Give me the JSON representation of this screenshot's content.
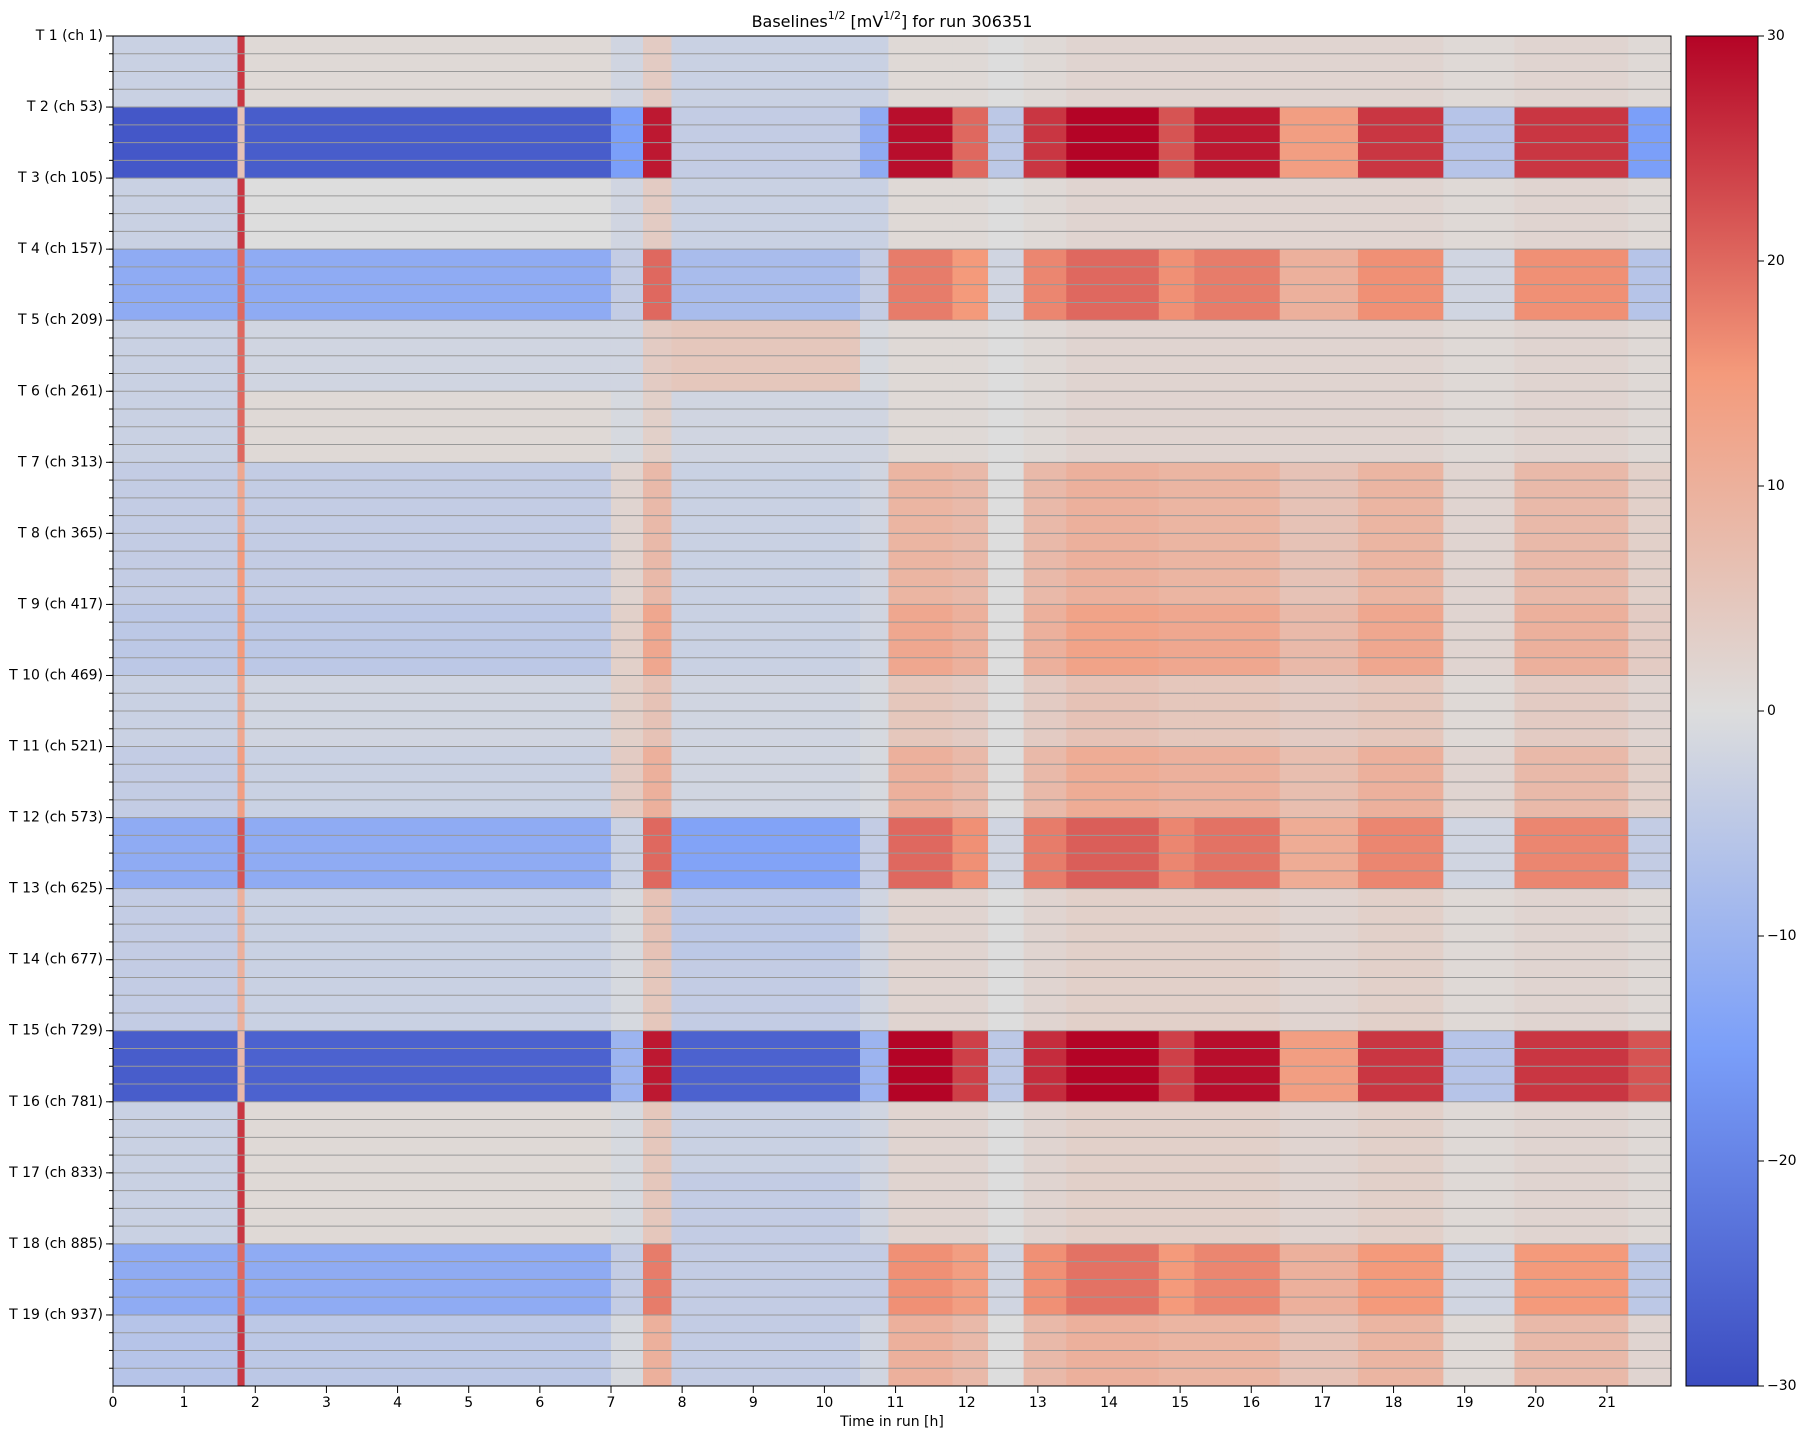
{
  "chart_data": {
    "type": "heatmap",
    "title_parts": [
      {
        "text": "Baselines"
      },
      {
        "text": "1/2",
        "sup": true
      },
      {
        "text": " [mV"
      },
      {
        "text": "1/2",
        "sup": true
      },
      {
        "text": "] for run 306351"
      }
    ],
    "xlabel": "Time in run [h]",
    "xlim": [
      0,
      21.9
    ],
    "xticks": [
      0,
      1,
      2,
      3,
      4,
      5,
      6,
      7,
      8,
      9,
      10,
      11,
      12,
      13,
      14,
      15,
      16,
      17,
      18,
      19,
      20,
      21
    ],
    "ylim": [
      1,
      989
    ],
    "yticks": [
      {
        "value": 1,
        "label": "T 1 (ch 1)"
      },
      {
        "value": 53,
        "label": "T 2 (ch 53)"
      },
      {
        "value": 105,
        "label": "T 3 (ch 105)"
      },
      {
        "value": 157,
        "label": "T 4 (ch 157)"
      },
      {
        "value": 209,
        "label": "T 5 (ch 209)"
      },
      {
        "value": 261,
        "label": "T 6 (ch 261)"
      },
      {
        "value": 313,
        "label": "T 7 (ch 313)"
      },
      {
        "value": 365,
        "label": "T 8 (ch 365)"
      },
      {
        "value": 417,
        "label": "T 9 (ch 417)"
      },
      {
        "value": 469,
        "label": "T 10 (ch 469)"
      },
      {
        "value": 521,
        "label": "T 11 (ch 521)"
      },
      {
        "value": 573,
        "label": "T 12 (ch 573)"
      },
      {
        "value": 625,
        "label": "T 13 (ch 625)"
      },
      {
        "value": 677,
        "label": "T 14 (ch 677)"
      },
      {
        "value": 729,
        "label": "T 15 (ch 729)"
      },
      {
        "value": 781,
        "label": "T 16 (ch 781)"
      },
      {
        "value": 833,
        "label": "T 17 (ch 833)"
      },
      {
        "value": 885,
        "label": "T 18 (ch 885)"
      },
      {
        "value": 937,
        "label": "T 19 (ch 937)"
      }
    ],
    "yminorticks": [
      1,
      14,
      27,
      40,
      53,
      66,
      79,
      92,
      105,
      118,
      131,
      144,
      157,
      170,
      183,
      196,
      209,
      222,
      235,
      248,
      261,
      274,
      287,
      300,
      313,
      326,
      339,
      352,
      365,
      378,
      391,
      404,
      417,
      430,
      443,
      456,
      469,
      482,
      495,
      508,
      521,
      534,
      547,
      560,
      573,
      586,
      599,
      612,
      625,
      638,
      651,
      664,
      677,
      690,
      703,
      716,
      729,
      742,
      755,
      768,
      781,
      794,
      807,
      820,
      833,
      846,
      859,
      872,
      885,
      898,
      911,
      924,
      937,
      950,
      963,
      976
    ],
    "grid": true,
    "x_edges": [
      0,
      1.75,
      1.85,
      7.0,
      7.45,
      7.85,
      10.5,
      10.9,
      11.8,
      12.3,
      12.8,
      13.4,
      14.7,
      15.2,
      16.4,
      17.5,
      18.7,
      19.7,
      21.3,
      21.9
    ],
    "y_edges": [
      1,
      53,
      105,
      157,
      209,
      261,
      313,
      365,
      417,
      469,
      521,
      573,
      625,
      677,
      729,
      781,
      833,
      885,
      937,
      989
    ],
    "z": [
      [
        -3,
        25,
        1,
        -2,
        4,
        -3,
        -3,
        1,
        1,
        0,
        1,
        2,
        2,
        2,
        2,
        2,
        1,
        2,
        1
      ],
      [
        -28,
        6,
        -27,
        -15,
        28,
        -4,
        -12,
        29,
        20,
        -5,
        25,
        30,
        22,
        28,
        14,
        25,
        -6,
        25,
        -15
      ],
      [
        -3,
        25,
        0,
        -2,
        4,
        -3,
        -3,
        1,
        1,
        0,
        1,
        2,
        2,
        2,
        2,
        2,
        1,
        2,
        1
      ],
      [
        -12,
        20,
        -12,
        -4,
        20,
        -8,
        -4,
        18,
        15,
        -2,
        17,
        20,
        16,
        18,
        10,
        16,
        -2,
        16,
        -6
      ],
      [
        -3,
        20,
        -2,
        -2,
        4,
        5,
        -1,
        1,
        1,
        0,
        1,
        2,
        2,
        2,
        2,
        2,
        1,
        2,
        1
      ],
      [
        -3,
        20,
        1,
        -1,
        3,
        -2,
        -2,
        1,
        1,
        0,
        1,
        2,
        2,
        2,
        2,
        2,
        1,
        2,
        1
      ],
      [
        -4,
        12,
        -4,
        2,
        8,
        -3,
        -2,
        9,
        8,
        0,
        8,
        10,
        9,
        9,
        6,
        9,
        2,
        8,
        3
      ],
      [
        -4,
        15,
        -4,
        2,
        8,
        -3,
        -2,
        9,
        8,
        0,
        8,
        10,
        9,
        9,
        6,
        9,
        2,
        8,
        3
      ],
      [
        -5,
        15,
        -5,
        3,
        12,
        -3,
        -2,
        12,
        10,
        0,
        10,
        13,
        12,
        12,
        8,
        12,
        2,
        10,
        4
      ],
      [
        -3,
        12,
        -2,
        3,
        6,
        -2,
        -1,
        5,
        4,
        0,
        4,
        6,
        5,
        5,
        4,
        5,
        1,
        4,
        2
      ],
      [
        -4,
        14,
        -3,
        4,
        10,
        -2,
        -1,
        10,
        8,
        0,
        8,
        11,
        10,
        10,
        7,
        10,
        2,
        8,
        3
      ],
      [
        -12,
        22,
        -12,
        -3,
        20,
        -14,
        -4,
        20,
        16,
        -2,
        18,
        21,
        17,
        19,
        11,
        17,
        -2,
        17,
        -4
      ],
      [
        -4,
        10,
        -3,
        -1,
        6,
        -5,
        -2,
        2,
        2,
        0,
        2,
        3,
        3,
        3,
        2,
        3,
        1,
        2,
        1
      ],
      [
        -4,
        10,
        -3,
        -1,
        5,
        -4,
        -2,
        2,
        2,
        0,
        2,
        3,
        3,
        3,
        2,
        3,
        1,
        2,
        1
      ],
      [
        -27,
        8,
        -26,
        -10,
        28,
        -26,
        -10,
        30,
        24,
        -5,
        26,
        30,
        24,
        29,
        14,
        25,
        -6,
        25,
        22
      ],
      [
        -3,
        25,
        1,
        -1,
        5,
        -3,
        -2,
        2,
        2,
        0,
        2,
        3,
        3,
        3,
        2,
        3,
        1,
        2,
        1
      ],
      [
        -3,
        25,
        1,
        -1,
        5,
        -4,
        -2,
        2,
        2,
        0,
        2,
        3,
        3,
        3,
        2,
        3,
        1,
        2,
        1
      ],
      [
        -12,
        20,
        -12,
        -4,
        18,
        -4,
        -4,
        16,
        14,
        -2,
        16,
        19,
        15,
        17,
        10,
        15,
        -2,
        15,
        -5
      ],
      [
        -6,
        25,
        -5,
        -1,
        10,
        -4,
        -2,
        10,
        8,
        0,
        8,
        10,
        9,
        9,
        6,
        9,
        1,
        8,
        2
      ]
    ],
    "zlim": [
      -30,
      30
    ],
    "zticks": [
      {
        "value": -30,
        "label": "−30"
      },
      {
        "value": -20,
        "label": "−20"
      },
      {
        "value": -10,
        "label": "−10"
      },
      0,
      10,
      20,
      30
    ],
    "colormap": [
      "#3b4cc0",
      "#7b9ff9",
      "#dddddd",
      "#f49a7b",
      "#b40426"
    ]
  }
}
